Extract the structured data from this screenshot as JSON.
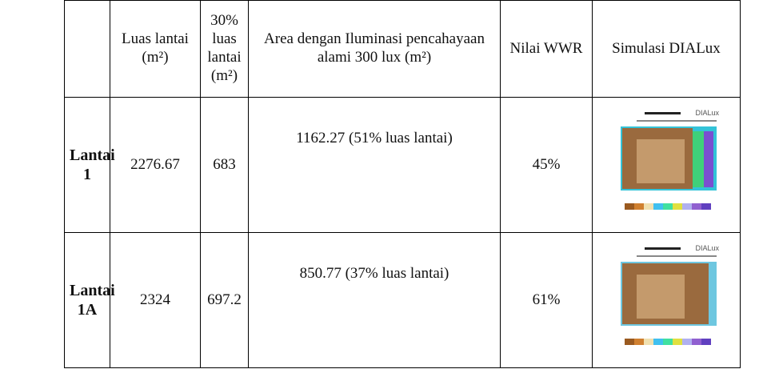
{
  "table": {
    "header": [
      "",
      "Luas lantai (m²)",
      "30% luas lantai (m²)",
      "Area dengan Iluminasi pencahayaan alami 300 lux (m²)",
      "Nilai WWR",
      "Simulasi DIALux"
    ],
    "rows": [
      [
        "Lantai 1",
        "2276.67",
        "683",
        "1162.27 (51% luas lantai)",
        "45%",
        "DIALux"
      ],
      [
        "Lantai 1A",
        "2324",
        "697.2",
        "850.77 (37% luas lantai)",
        "61%",
        "DIALux"
      ]
    ]
  }
}
